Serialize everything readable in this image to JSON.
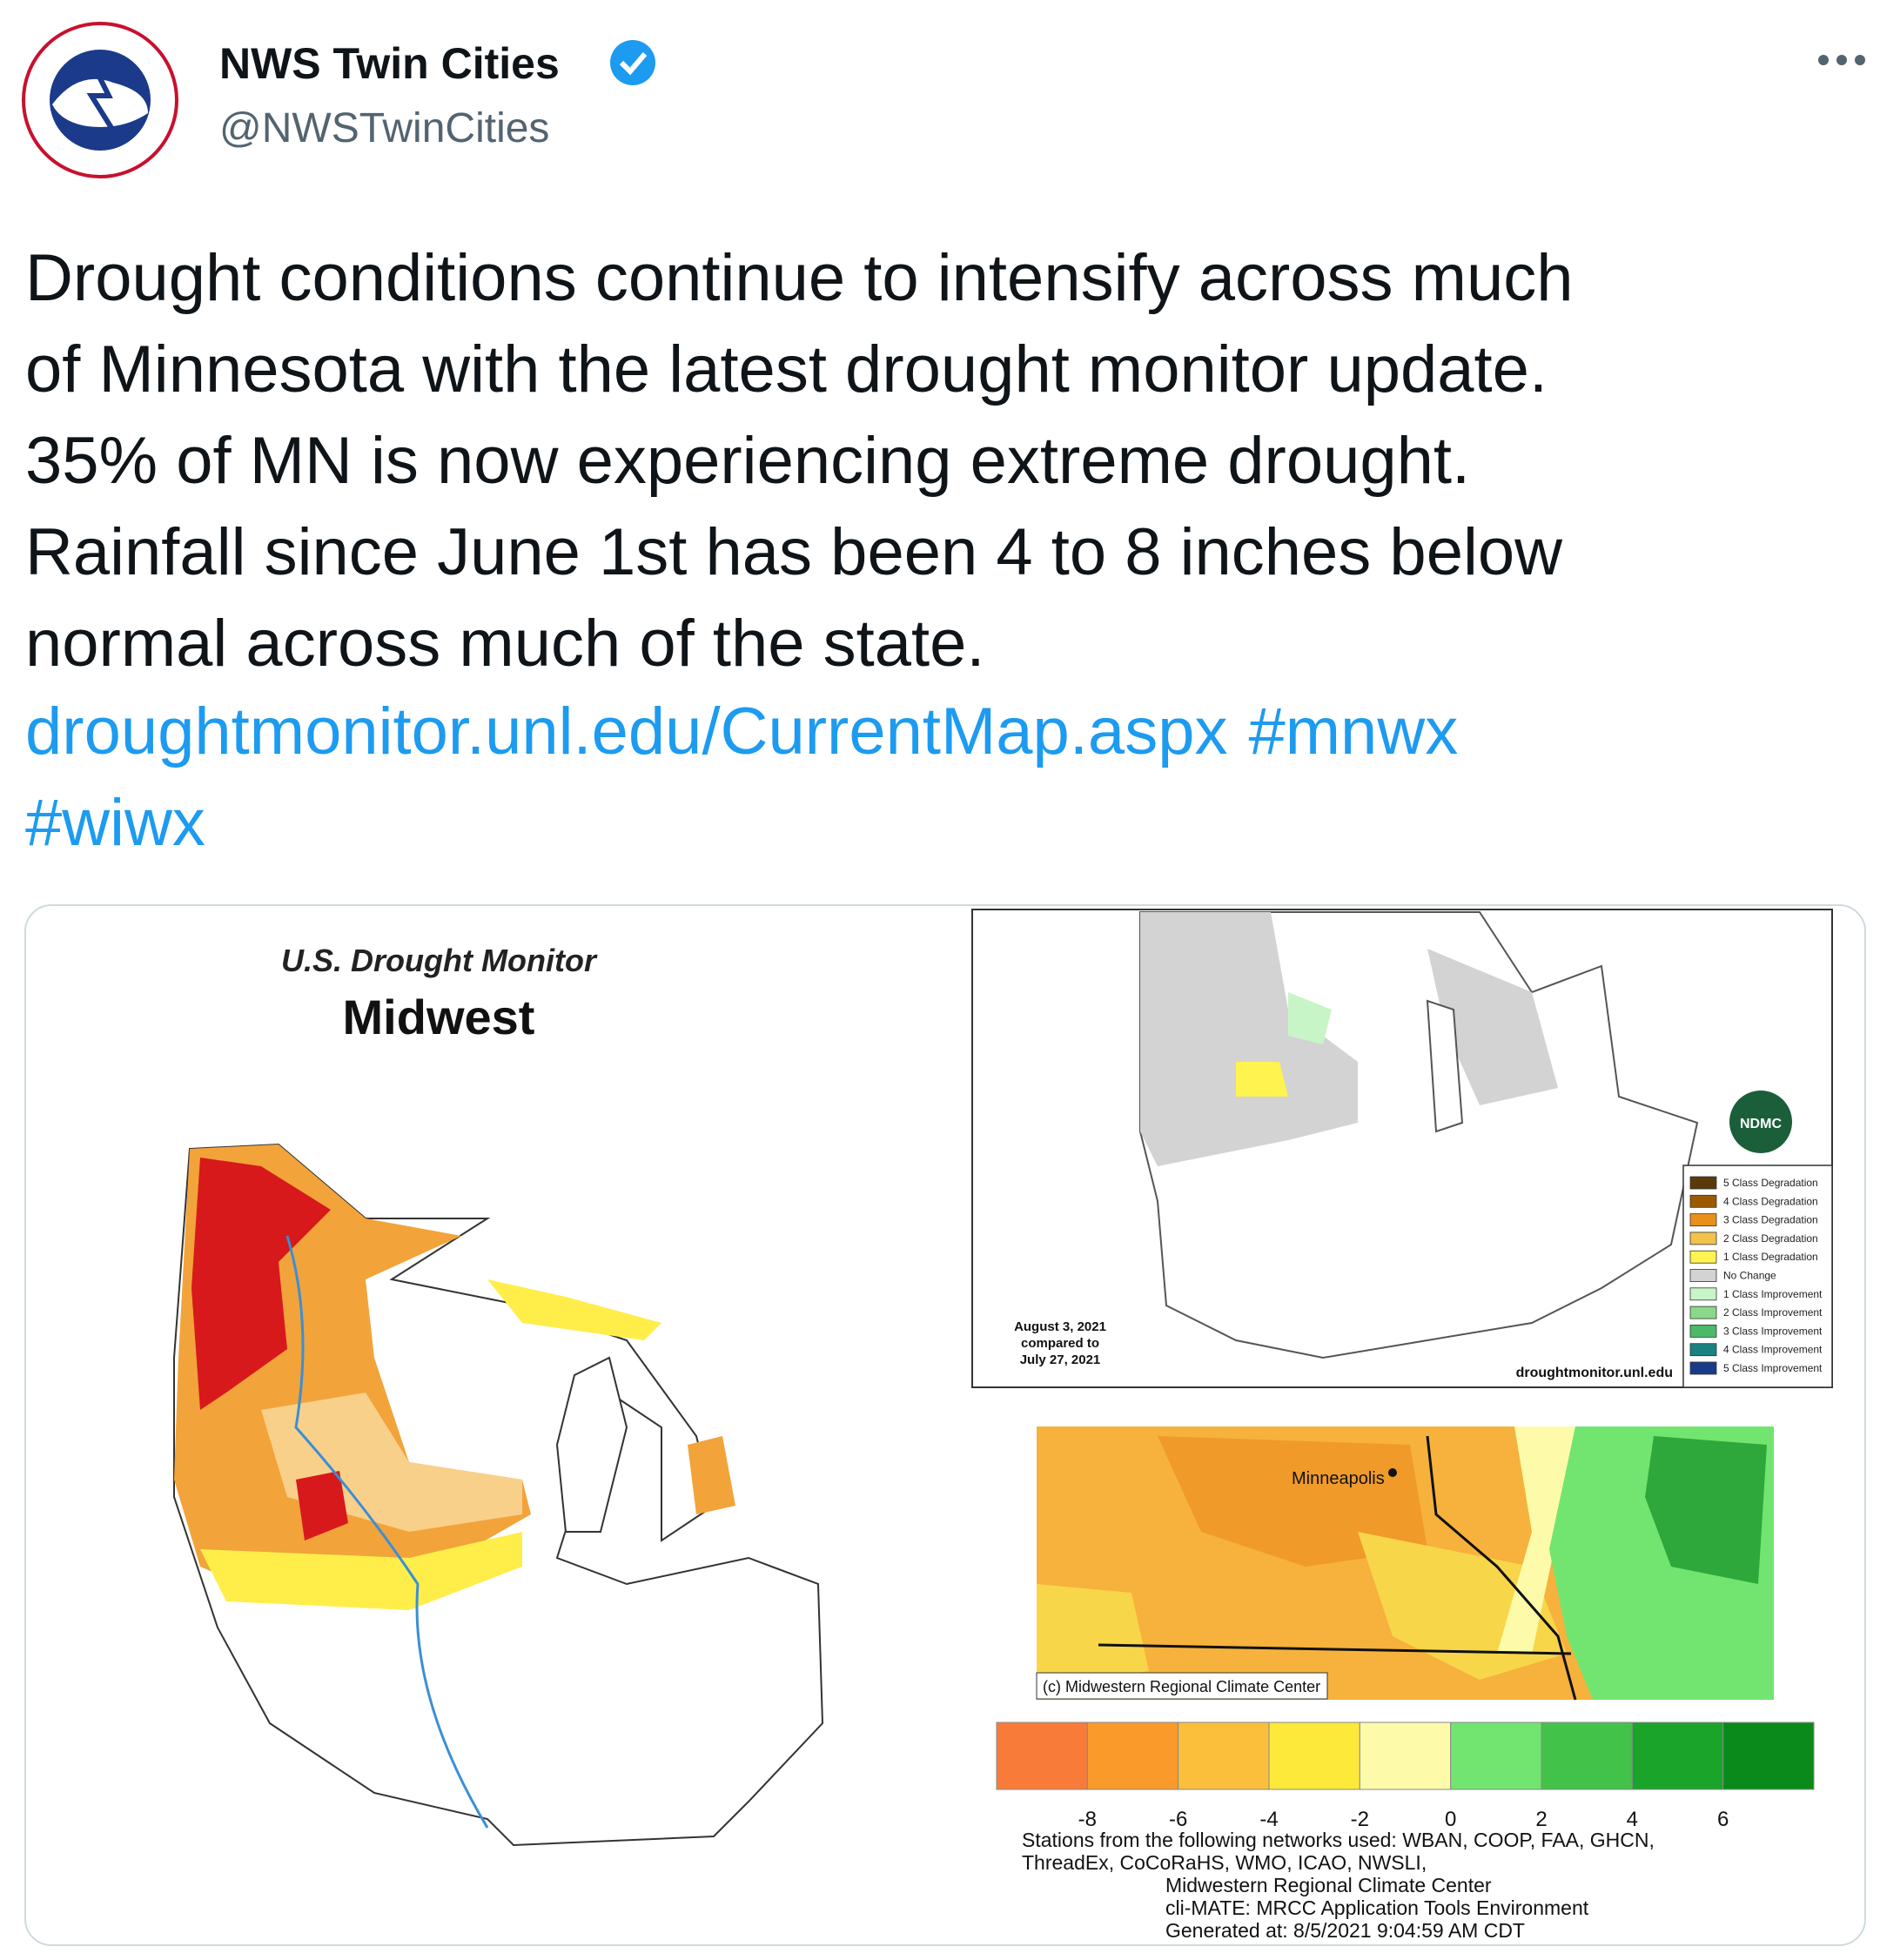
{
  "header": {
    "name": "NWS Twin Cities",
    "handle": "@NWSTwinCities"
  },
  "tweet": {
    "text_lines": [
      "Drought conditions continue to intensify across much",
      "of Minnesota with the latest drought monitor update.",
      "35% of MN is now experiencing extreme drought.",
      "Rainfall since June 1st has been 4 to 8 inches below",
      "normal across much of the state."
    ],
    "link": "droughtmonitor.unl.edu/CurrentMap.aspx",
    "hashtags": [
      "#mnwx",
      "#wiwx"
    ]
  },
  "media": {
    "drought_map": {
      "title": "U.S. Drought Monitor",
      "region": "Midwest"
    },
    "change_map": {
      "date_lines": [
        "August 3, 2021",
        "compared to",
        "July 27, 2021"
      ],
      "source": "droughtmonitor.unl.edu",
      "logo": "NDMC",
      "legend": [
        "5 Class Degradation",
        "4 Class Degradation",
        "3 Class Degradation",
        "2 Class Degradation",
        "1 Class Degradation",
        "No Change",
        "1 Class Improvement",
        "2 Class Improvement",
        "3 Class Improvement",
        "4 Class Improvement",
        "5 Class Improvement"
      ]
    },
    "precip_map": {
      "city": "Minneapolis",
      "credit": "(c) Midwestern Regional Climate Center",
      "colorbar_ticks": [
        -8,
        -6,
        -4,
        -2,
        0,
        2,
        4,
        6
      ],
      "notes": [
        "Stations from the following networks used: WBAN, COOP, FAA, GHCN,",
        "ThreadEx, CoCoRaHS, WMO, ICAO, NWSLI,",
        "Midwestern Regional Climate Center",
        "cli-MATE: MRCC Application Tools Environment",
        "Generated at: 8/5/2021 9:04:59 AM CDT"
      ]
    }
  }
}
